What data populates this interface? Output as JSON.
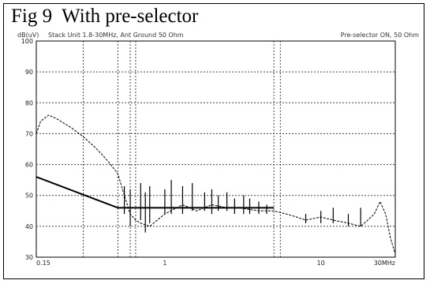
{
  "title": "Fig 9  With pre-selector",
  "header": {
    "left_unit": "dB(uV)",
    "left_desc": "Stack Unit 1.8-30MHz, Ant Ground 50 Ohm",
    "right_desc": "Pre-selector ON, 50 Ohm"
  },
  "chart_data": {
    "type": "line",
    "title": "Fig 9  With pre-selector",
    "xlabel": "",
    "ylabel": "dB(uV)",
    "xscale": "log",
    "xlim": [
      0.15,
      30
    ],
    "ylim": [
      30,
      100
    ],
    "grid": true,
    "y_ticks": [
      30,
      40,
      50,
      60,
      70,
      80,
      90,
      100
    ],
    "x_ticks": [
      {
        "value": 0.15,
        "label": "0.15"
      },
      {
        "value": 1,
        "label": "1"
      },
      {
        "value": 10,
        "label": "10"
      },
      {
        "value": 30,
        "label": "30MHz"
      }
    ],
    "x_gridlines": [
      0.15,
      0.3,
      0.5,
      0.6,
      0.65,
      5,
      5.5,
      30
    ],
    "series": [
      {
        "name": "limit",
        "style": "solid",
        "x": [
          0.15,
          0.5,
          5
        ],
        "y": [
          56,
          46,
          46
        ]
      },
      {
        "name": "emission",
        "style": "trace",
        "x": [
          0.15,
          0.16,
          0.18,
          0.2,
          0.25,
          0.3,
          0.35,
          0.4,
          0.45,
          0.5,
          0.55,
          0.6,
          0.65,
          0.7,
          0.8,
          1,
          1.3,
          1.6,
          2,
          2.5,
          3,
          4,
          5,
          6,
          7,
          8,
          10,
          12,
          15,
          18,
          20,
          22,
          24,
          26,
          28,
          30
        ],
        "y": [
          70,
          74,
          76,
          75,
          72,
          69,
          66,
          63,
          60,
          57,
          50,
          44,
          42,
          41,
          40,
          44,
          47,
          45,
          47,
          46,
          46,
          45,
          45,
          44,
          43,
          42,
          43,
          42,
          41,
          40,
          42,
          44,
          48,
          44,
          36,
          31
        ]
      },
      {
        "name": "spikes",
        "style": "spikes",
        "x": [
          0.55,
          0.6,
          0.7,
          0.75,
          0.8,
          1.0,
          1.1,
          1.3,
          1.5,
          1.8,
          2.0,
          2.2,
          2.5,
          2.8,
          3.2,
          3.5,
          4.0,
          4.5,
          8,
          10,
          12,
          15,
          18
        ],
        "y_low": [
          44,
          40,
          42,
          38,
          41,
          44,
          44,
          44,
          45,
          45,
          44,
          45,
          45,
          44,
          44,
          44,
          44,
          44,
          41,
          41,
          41,
          40,
          40
        ],
        "y_high": [
          53,
          52,
          54,
          51,
          53,
          52,
          55,
          53,
          54,
          51,
          52,
          50,
          51,
          49,
          50,
          49,
          48,
          47,
          44,
          45,
          46,
          44,
          46
        ]
      }
    ]
  }
}
